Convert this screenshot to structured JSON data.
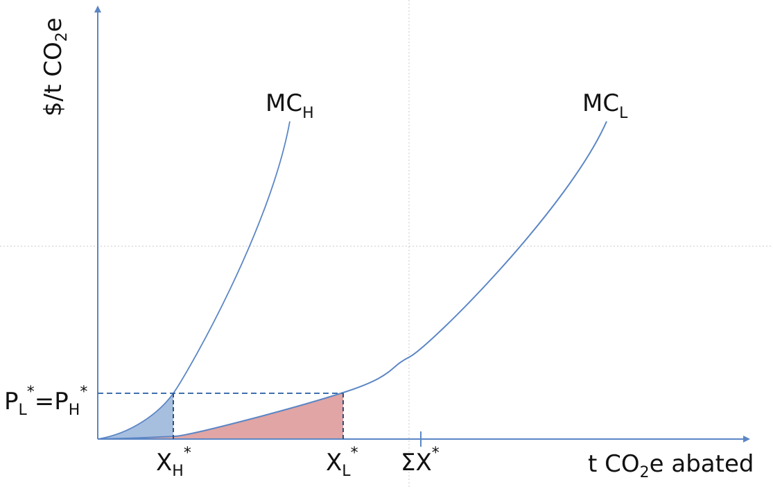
{
  "diagram": {
    "y_axis_label": {
      "main": "$/t CO",
      "sub": "2",
      "tail": "e"
    },
    "x_axis_label": {
      "main": "t CO",
      "sub": "2",
      "tail": "e abated"
    },
    "curve_high": {
      "main": "MC",
      "sub": "H"
    },
    "curve_low": {
      "main": "MC",
      "sub": "L"
    },
    "price_label": {
      "p1": "P",
      "s1": "L",
      "star1": "*",
      "eq": "=P",
      "s2": "H",
      "star2": "*"
    },
    "x_high": {
      "main": "X",
      "sub": "H",
      "star": "*"
    },
    "x_low": {
      "main": "X",
      "sub": "L",
      "star": "*"
    },
    "x_sum": {
      "main": "ΣX",
      "star": "*"
    },
    "colors": {
      "line": "#5b86c5",
      "fill_high": "#a7bfdf",
      "fill_low": "#e0a5a4",
      "grid": "#c8c8c8"
    }
  }
}
